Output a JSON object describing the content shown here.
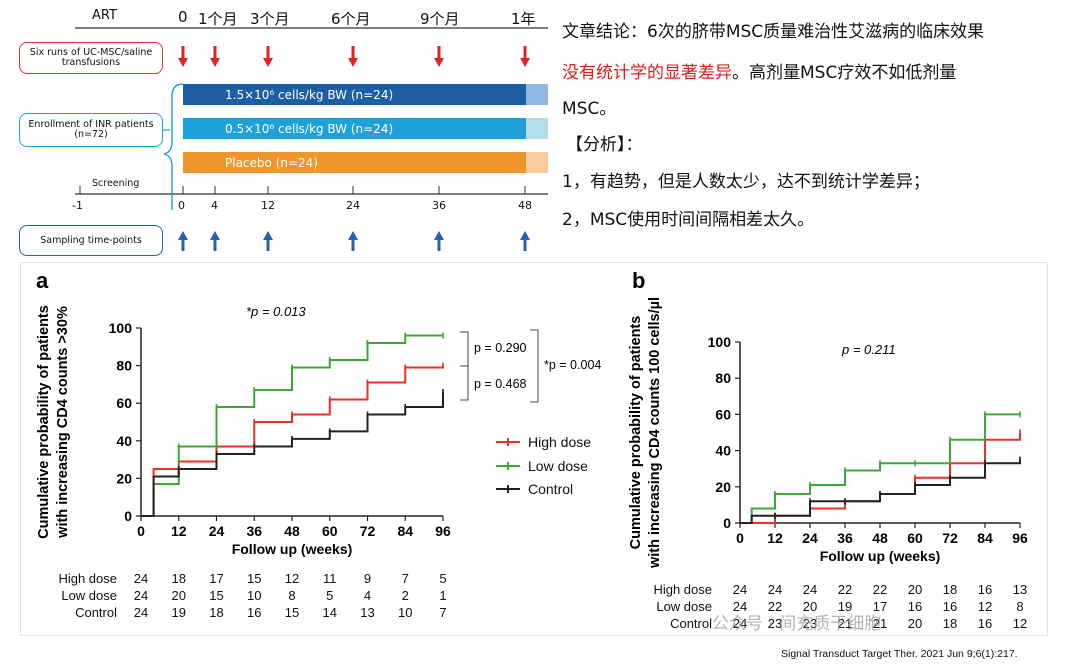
{
  "timeline": {
    "art_label": "ART",
    "month_labels": [
      "0",
      "1个月",
      "3个月",
      "6个月",
      "9个月",
      "1年"
    ],
    "transfusion_label": "Six runs of UC-MSC/saline transfusions",
    "enrollment_label": "Enrollment of INR patients (n=72)",
    "bars": [
      {
        "label": "1.5×10⁶ cells/kg BW (n=24)",
        "color": "#1e5fa3",
        "end_color": "#8fb8e3"
      },
      {
        "label": "0.5×10⁶ cells/kg BW (n=24)",
        "color": "#1da1d8",
        "end_color": "#b5dde9"
      },
      {
        "label": "Placebo (n=24)",
        "color": "#ee962c",
        "end_color": "#f7cd9b"
      }
    ],
    "screening_label": "Screening",
    "weeks": [
      "-1",
      "0",
      "4",
      "12",
      "24",
      "36",
      "48"
    ],
    "sampling_label": "Sampling time-points",
    "arrow_down_color": "#e02424",
    "arrow_up_color": "#2a5fb0"
  },
  "conclusion": {
    "line1": "文章结论：6次的脐带MSC质量难治性艾滋病的临床效果",
    "line2_red": "没有统计学的显著差异",
    "line2_rest": "。高剂量MSC疗效不如低剂量",
    "line3": "MSC。",
    "analysis_title": "【分析】：",
    "point1": "1，有趋势，但是人数太少，达不到统计学差异；",
    "point2": "2，MSC使用时间间隔相差太久。"
  },
  "chart_data": [
    {
      "panel": "a",
      "type": "line",
      "ylabel": "Cumulative probability of patients with increasing CD4 counts >30%",
      "xlabel": "Follow up (weeks)",
      "xticks": [
        0,
        12,
        24,
        36,
        48,
        60,
        72,
        84,
        96
      ],
      "yticks": [
        0,
        20,
        40,
        60,
        80,
        100
      ],
      "ylim": [
        0,
        100
      ],
      "xlim": [
        0,
        96
      ],
      "annotations": {
        "main_p": "*p = 0.013",
        "p1": "p = 0.290",
        "p2": "p = 0.468",
        "p3": "*p = 0.004"
      },
      "series": [
        {
          "name": "High dose",
          "color": "#e8312a",
          "x": [
            0,
            4,
            4,
            12,
            24,
            36,
            48,
            60,
            72,
            84,
            96
          ],
          "y": [
            0,
            0,
            25,
            29,
            37,
            50,
            54,
            62,
            71,
            79,
            80
          ]
        },
        {
          "name": "Low dose",
          "color": "#3aaa35",
          "x": [
            0,
            4,
            4,
            12,
            24,
            36,
            48,
            60,
            72,
            84,
            96
          ],
          "y": [
            0,
            0,
            17,
            37,
            58,
            67,
            79,
            83,
            92,
            96,
            96
          ]
        },
        {
          "name": "Control",
          "color": "#222222",
          "x": [
            0,
            4,
            4,
            12,
            24,
            36,
            48,
            60,
            72,
            84,
            96
          ],
          "y": [
            0,
            0,
            21,
            25,
            33,
            37,
            41,
            45,
            54,
            58,
            66
          ]
        }
      ],
      "at_risk": {
        "labels": [
          "High dose",
          "Low dose",
          "Control"
        ],
        "rows": [
          [
            24,
            18,
            17,
            15,
            12,
            11,
            9,
            7,
            5
          ],
          [
            24,
            20,
            15,
            10,
            8,
            5,
            4,
            2,
            1
          ],
          [
            24,
            19,
            18,
            16,
            15,
            14,
            13,
            10,
            7
          ]
        ]
      },
      "legend": [
        "High dose",
        "Low dose",
        "Control"
      ],
      "legend_position": "right"
    },
    {
      "panel": "b",
      "type": "line",
      "ylabel": "Cumulative probability of patients with increasing CD4 counts 100 cells/µl",
      "xlabel": "Follow up (weeks)",
      "xticks": [
        0,
        12,
        24,
        36,
        48,
        60,
        72,
        84,
        96
      ],
      "yticks": [
        0,
        20,
        40,
        60,
        80,
        100
      ],
      "ylim": [
        0,
        100
      ],
      "xlim": [
        0,
        96
      ],
      "annotations": {
        "main_p": "p = 0.211"
      },
      "series": [
        {
          "name": "High dose",
          "color": "#e8312a",
          "x": [
            0,
            4,
            4,
            12,
            24,
            36,
            48,
            60,
            72,
            84,
            96
          ],
          "y": [
            0,
            0,
            0,
            4,
            8,
            12,
            16,
            25,
            33,
            46,
            50
          ]
        },
        {
          "name": "Low dose",
          "color": "#3aaa35",
          "x": [
            0,
            4,
            4,
            12,
            24,
            36,
            48,
            60,
            72,
            84,
            96
          ],
          "y": [
            0,
            0,
            8,
            16,
            21,
            29,
            33,
            33,
            46,
            60,
            60
          ]
        },
        {
          "name": "Control",
          "color": "#222222",
          "x": [
            0,
            4,
            4,
            12,
            24,
            36,
            48,
            60,
            72,
            84,
            96
          ],
          "y": [
            0,
            0,
            4,
            4,
            12,
            12,
            16,
            21,
            25,
            33,
            35
          ]
        }
      ],
      "at_risk": {
        "labels": [
          "High dose",
          "Low dose",
          "Control"
        ],
        "rows": [
          [
            24,
            24,
            24,
            22,
            22,
            20,
            18,
            16,
            13
          ],
          [
            24,
            22,
            20,
            19,
            17,
            16,
            16,
            12,
            8
          ],
          [
            24,
            23,
            23,
            21,
            21,
            20,
            18,
            16,
            12
          ]
        ]
      }
    }
  ],
  "watermark": "公众号 · 间充质干细胞",
  "citation": "Signal Transduct Target Ther. 2021 Jun 9;6(1):217."
}
